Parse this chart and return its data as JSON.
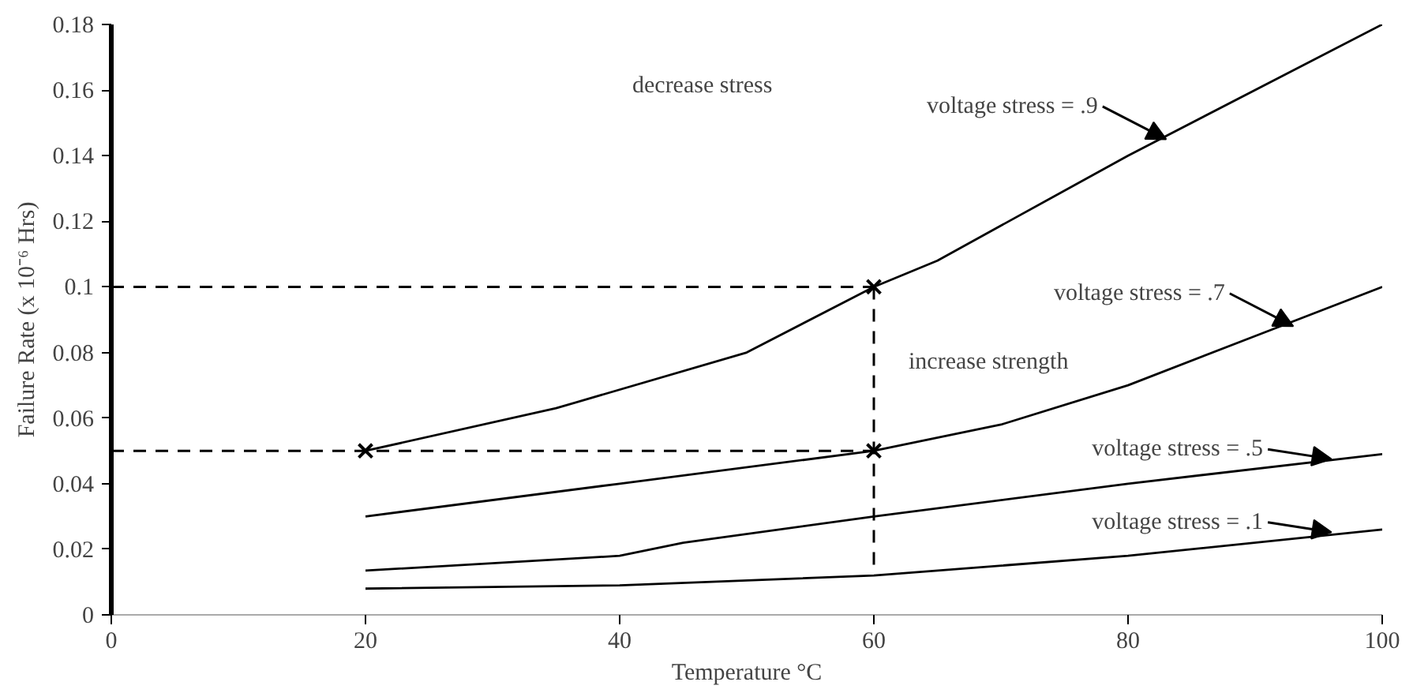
{
  "chart_data": {
    "type": "line",
    "xlabel": "Temperature °C",
    "ylabel": "Failure Rate (x 10⁻⁶ Hrs)",
    "xlim": [
      0,
      100
    ],
    "ylim": [
      0,
      0.18
    ],
    "xticks": [
      0,
      20,
      40,
      60,
      80,
      100
    ],
    "yticks": [
      0,
      0.02,
      0.04,
      0.06,
      0.08,
      0.1,
      0.12,
      0.14,
      0.16,
      0.18
    ],
    "grid": false,
    "line_style": "solid",
    "marker": "none",
    "series": [
      {
        "color": "#000000",
        "x": [
          20,
          35,
          50,
          60,
          65,
          80,
          100
        ],
        "values": [
          0.05,
          0.063,
          0.08,
          0.1,
          0.108,
          0.14,
          0.18
        ]
      },
      {
        "color": "#000000",
        "x": [
          20,
          40,
          60,
          70,
          80,
          90,
          100
        ],
        "values": [
          0.03,
          0.04,
          0.05,
          0.058,
          0.07,
          0.085,
          0.1
        ]
      },
      {
        "color": "#000000",
        "x": [
          20,
          40,
          45,
          60,
          80,
          100
        ],
        "values": [
          0.0135,
          0.018,
          0.022,
          0.03,
          0.04,
          0.049
        ]
      },
      {
        "color": "#000000",
        "x": [
          20,
          40,
          60,
          80,
          100
        ],
        "values": [
          0.008,
          0.009,
          0.012,
          0.018,
          0.026
        ]
      },
      {
        "color": "#000000",
        "line_style": "dashed",
        "x": [
          0,
          60
        ],
        "values": [
          0.1,
          0.1
        ]
      },
      {
        "color": "#000000",
        "line_style": "dashed",
        "x": [
          0,
          60
        ],
        "values": [
          0.05,
          0.05
        ]
      },
      {
        "color": "#000000",
        "line_style": "dashed",
        "x": [
          60,
          60
        ],
        "values": [
          0.1,
          0.015
        ]
      },
      {
        "color": "#000000",
        "type": "scatter",
        "marker": "cross",
        "x": [
          20,
          60,
          60
        ],
        "values": [
          0.05,
          0.1,
          0.05
        ]
      }
    ],
    "annotations": [
      "decrease stress",
      "increase strength",
      {
        "text": "voltage stress = .9",
        "x": 83,
        "y": 0.145
      },
      {
        "text": "voltage stress = .7",
        "x": 93,
        "y": 0.088
      },
      {
        "text": "voltage stress = .5",
        "x": 96,
        "y": 0.0475
      },
      {
        "text": "voltage stress = .1",
        "x": 96,
        "y": 0.0252
      }
    ]
  }
}
